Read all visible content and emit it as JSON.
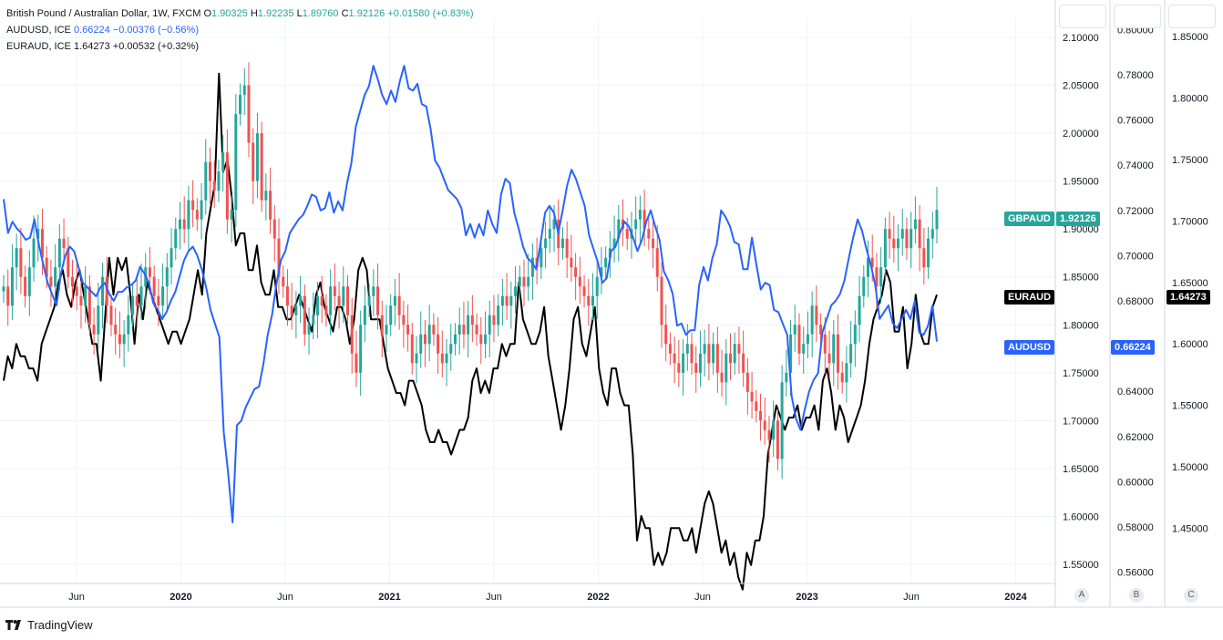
{
  "legend": {
    "main": {
      "name": "British Pound / Australian Dollar, 1W, FXCM",
      "o_label": "O",
      "o": "1.90325",
      "h_label": "H",
      "h": "1.92235",
      "l_label": "L",
      "l": "1.89760",
      "c_label": "C",
      "c": "1.92126",
      "change": "+0.01580 (+0.83%)"
    },
    "audusd": {
      "name": "AUDUSD, ICE",
      "value": "0.66224",
      "change": "−0.00376 (−0.56%)"
    },
    "euraud": {
      "name": "EURAUD, ICE",
      "value": "1.64273",
      "change": "+0.00532 (+0.32%)"
    }
  },
  "tags": {
    "gbpaud_label": "GBPAUD",
    "gbpaud_value": "1.92126",
    "euraud_label": "EURAUD",
    "euraud_value": "1.64273",
    "audusd_label": "AUDUSD",
    "audusd_value": "0.66224"
  },
  "scales": {
    "a": "A",
    "b": "B",
    "c": "C"
  },
  "brand": {
    "name": "TradingView"
  },
  "colors": {
    "up": "#26a69a",
    "down": "#ef5350",
    "audusd": "#2962ff",
    "euraud": "#000000",
    "grid": "#f0f3fa"
  },
  "chart_data": {
    "type": "line",
    "title": "British Pound / Australian Dollar, 1W, FXCM",
    "x_tick_labels": [
      "Jun",
      "2020",
      "Jun",
      "2021",
      "Jun",
      "2022",
      "Jun",
      "2023",
      "Jun",
      "2024"
    ],
    "axes": {
      "gbpaud": {
        "range": [
          1.53,
          2.12
        ],
        "ticks": [
          "1.55000",
          "1.60000",
          "1.65000",
          "1.70000",
          "1.75000",
          "1.80000",
          "1.85000",
          "1.90000",
          "1.95000",
          "2.00000",
          "2.05000",
          "2.10000"
        ]
      },
      "audusd": {
        "range": [
          0.555,
          0.805
        ],
        "ticks": [
          "0.56000",
          "0.58000",
          "0.60000",
          "0.62000",
          "0.64000",
          "0.66000",
          "0.68000",
          "0.70000",
          "0.72000",
          "0.74000",
          "0.76000",
          "0.78000",
          "0.80000"
        ]
      },
      "euraud": {
        "range": [
          1.405,
          1.865
        ],
        "ticks": [
          "1.45000",
          "1.50000",
          "1.55000",
          "1.60000",
          "1.65000",
          "1.70000",
          "1.75000",
          "1.80000",
          "1.85000"
        ]
      }
    },
    "series": [
      {
        "name": "GBPAUD",
        "type": "candlestick",
        "close": [
          1.84,
          1.82,
          1.86,
          1.88,
          1.85,
          1.83,
          1.86,
          1.89,
          1.9,
          1.87,
          1.85,
          1.84,
          1.86,
          1.89,
          1.88,
          1.85,
          1.84,
          1.83,
          1.82,
          1.84,
          1.8,
          1.79,
          1.82,
          1.85,
          1.82,
          1.8,
          1.79,
          1.78,
          1.79,
          1.81,
          1.83,
          1.82,
          1.84,
          1.86,
          1.85,
          1.83,
          1.82,
          1.84,
          1.86,
          1.88,
          1.9,
          1.91,
          1.9,
          1.93,
          1.92,
          1.91,
          1.93,
          1.97,
          1.95,
          1.94,
          1.96,
          1.98,
          1.91,
          1.92,
          2.02,
          2.04,
          2.05,
          1.99,
          1.95,
          2.0,
          1.93,
          1.94,
          1.91,
          1.89,
          1.85,
          1.84,
          1.82,
          1.81,
          1.82,
          1.83,
          1.79,
          1.8,
          1.81,
          1.83,
          1.82,
          1.81,
          1.84,
          1.83,
          1.82,
          1.84,
          1.81,
          1.77,
          1.75,
          1.8,
          1.82,
          1.83,
          1.84,
          1.81,
          1.79,
          1.8,
          1.82,
          1.83,
          1.81,
          1.8,
          1.79,
          1.76,
          1.77,
          1.79,
          1.78,
          1.8,
          1.79,
          1.77,
          1.76,
          1.77,
          1.78,
          1.79,
          1.8,
          1.79,
          1.81,
          1.8,
          1.79,
          1.78,
          1.79,
          1.81,
          1.8,
          1.82,
          1.83,
          1.82,
          1.83,
          1.84,
          1.85,
          1.84,
          1.85,
          1.87,
          1.86,
          1.88,
          1.89,
          1.9,
          1.91,
          1.88,
          1.89,
          1.87,
          1.86,
          1.85,
          1.84,
          1.83,
          1.82,
          1.83,
          1.85,
          1.86,
          1.87,
          1.88,
          1.89,
          1.91,
          1.9,
          1.89,
          1.9,
          1.91,
          1.92,
          1.9,
          1.89,
          1.88,
          1.85,
          1.8,
          1.78,
          1.77,
          1.76,
          1.75,
          1.77,
          1.78,
          1.76,
          1.75,
          1.77,
          1.78,
          1.76,
          1.78,
          1.75,
          1.74,
          1.77,
          1.76,
          1.78,
          1.77,
          1.75,
          1.73,
          1.72,
          1.71,
          1.7,
          1.69,
          1.68,
          1.7,
          1.66,
          1.74,
          1.75,
          1.79,
          1.8,
          1.77,
          1.78,
          1.79,
          1.82,
          1.8,
          1.79,
          1.77,
          1.76,
          1.79,
          1.75,
          1.74,
          1.76,
          1.78,
          1.8,
          1.83,
          1.85,
          1.87,
          1.86,
          1.84,
          1.86,
          1.9,
          1.89,
          1.88,
          1.89,
          1.9,
          1.88,
          1.9,
          1.91,
          1.88,
          1.86,
          1.89,
          1.9,
          1.92
        ]
      },
      {
        "name": "AUDUSD",
        "values": [
          0.725,
          0.71,
          0.715,
          0.712,
          0.71,
          0.707,
          0.708,
          0.716,
          0.705,
          0.696,
          0.688,
          0.683,
          0.678,
          0.692,
          0.7,
          0.704,
          0.702,
          0.695,
          0.688,
          0.686,
          0.684,
          0.682,
          0.686,
          0.688,
          0.683,
          0.68,
          0.684,
          0.684,
          0.686,
          0.687,
          0.689,
          0.695,
          0.692,
          0.688,
          0.679,
          0.676,
          0.672,
          0.675,
          0.68,
          0.684,
          0.691,
          0.698,
          0.702,
          0.704,
          0.7,
          0.694,
          0.686,
          0.676,
          0.67,
          0.664,
          0.622,
          0.604,
          0.582,
          0.625,
          0.627,
          0.633,
          0.637,
          0.641,
          0.642,
          0.652,
          0.665,
          0.674,
          0.688,
          0.698,
          0.702,
          0.71,
          0.713,
          0.716,
          0.718,
          0.722,
          0.727,
          0.726,
          0.72,
          0.721,
          0.728,
          0.719,
          0.724,
          0.72,
          0.732,
          0.741,
          0.757,
          0.764,
          0.771,
          0.775,
          0.784,
          0.778,
          0.771,
          0.767,
          0.773,
          0.768,
          0.777,
          0.784,
          0.774,
          0.773,
          0.776,
          0.767,
          0.766,
          0.756,
          0.742,
          0.739,
          0.734,
          0.729,
          0.727,
          0.725,
          0.721,
          0.709,
          0.714,
          0.708,
          0.714,
          0.709,
          0.72,
          0.714,
          0.71,
          0.727,
          0.734,
          0.732,
          0.719,
          0.712,
          0.704,
          0.699,
          0.697,
          0.694,
          0.706,
          0.719,
          0.722,
          0.719,
          0.71,
          0.72,
          0.731,
          0.738,
          0.734,
          0.728,
          0.722,
          0.709,
          0.703,
          0.697,
          0.688,
          0.69,
          0.702,
          0.704,
          0.71,
          0.715,
          0.713,
          0.708,
          0.702,
          0.707,
          0.715,
          0.72,
          0.713,
          0.707,
          0.693,
          0.689,
          0.683,
          0.669,
          0.67,
          0.665,
          0.667,
          0.667,
          0.687,
          0.695,
          0.689,
          0.699,
          0.705,
          0.72,
          0.717,
          0.713,
          0.706,
          0.705,
          0.694,
          0.694,
          0.708,
          0.696,
          0.685,
          0.688,
          0.687,
          0.676,
          0.675,
          0.67,
          0.665,
          0.638,
          0.628,
          0.623,
          0.632,
          0.64,
          0.645,
          0.648,
          0.666,
          0.672,
          0.678,
          0.68,
          0.683,
          0.689,
          0.699,
          0.708,
          0.716,
          0.711,
          0.703,
          0.696,
          0.687,
          0.672,
          0.675,
          0.678,
          0.67,
          0.668,
          0.672,
          0.676,
          0.672,
          0.68,
          0.666,
          0.665,
          0.669,
          0.678,
          0.662
        ]
      },
      {
        "name": "EURAUD",
        "values": [
          1.57,
          1.59,
          1.58,
          1.6,
          1.59,
          1.59,
          1.58,
          1.58,
          1.57,
          1.6,
          1.61,
          1.62,
          1.63,
          1.65,
          1.66,
          1.64,
          1.63,
          1.65,
          1.66,
          1.64,
          1.62,
          1.6,
          1.6,
          1.57,
          1.62,
          1.67,
          1.64,
          1.67,
          1.66,
          1.67,
          1.64,
          1.6,
          1.64,
          1.62,
          1.65,
          1.64,
          1.63,
          1.62,
          1.61,
          1.6,
          1.61,
          1.61,
          1.6,
          1.61,
          1.62,
          1.64,
          1.66,
          1.64,
          1.69,
          1.71,
          1.73,
          1.82,
          1.74,
          1.75,
          1.72,
          1.68,
          1.69,
          1.69,
          1.66,
          1.66,
          1.68,
          1.65,
          1.64,
          1.64,
          1.66,
          1.63,
          1.63,
          1.62,
          1.62,
          1.63,
          1.64,
          1.63,
          1.62,
          1.61,
          1.64,
          1.65,
          1.63,
          1.62,
          1.61,
          1.63,
          1.63,
          1.62,
          1.6,
          1.62,
          1.66,
          1.67,
          1.66,
          1.62,
          1.62,
          1.62,
          1.6,
          1.58,
          1.57,
          1.56,
          1.56,
          1.55,
          1.57,
          1.57,
          1.56,
          1.55,
          1.53,
          1.52,
          1.52,
          1.53,
          1.52,
          1.52,
          1.51,
          1.52,
          1.53,
          1.53,
          1.54,
          1.57,
          1.58,
          1.56,
          1.57,
          1.56,
          1.58,
          1.58,
          1.6,
          1.59,
          1.6,
          1.6,
          1.65,
          1.62,
          1.61,
          1.6,
          1.6,
          1.61,
          1.63,
          1.59,
          1.57,
          1.55,
          1.53,
          1.55,
          1.58,
          1.62,
          1.63,
          1.6,
          1.59,
          1.61,
          1.63,
          1.58,
          1.56,
          1.55,
          1.58,
          1.58,
          1.56,
          1.55,
          1.55,
          1.51,
          1.44,
          1.46,
          1.45,
          1.45,
          1.42,
          1.43,
          1.42,
          1.43,
          1.45,
          1.45,
          1.45,
          1.44,
          1.44,
          1.45,
          1.43,
          1.45,
          1.47,
          1.48,
          1.47,
          1.45,
          1.43,
          1.44,
          1.42,
          1.43,
          1.41,
          1.4,
          1.43,
          1.42,
          1.44,
          1.44,
          1.46,
          1.51,
          1.53,
          1.55,
          1.54,
          1.53,
          1.54,
          1.54,
          1.55,
          1.53,
          1.54,
          1.54,
          1.55,
          1.53,
          1.57,
          1.58,
          1.56,
          1.53,
          1.55,
          1.54,
          1.52,
          1.53,
          1.54,
          1.55,
          1.57,
          1.6,
          1.62,
          1.63,
          1.64,
          1.66,
          1.65,
          1.61,
          1.61,
          1.63,
          1.58,
          1.6,
          1.64,
          1.61,
          1.6,
          1.6,
          1.63,
          1.64
        ]
      }
    ]
  }
}
